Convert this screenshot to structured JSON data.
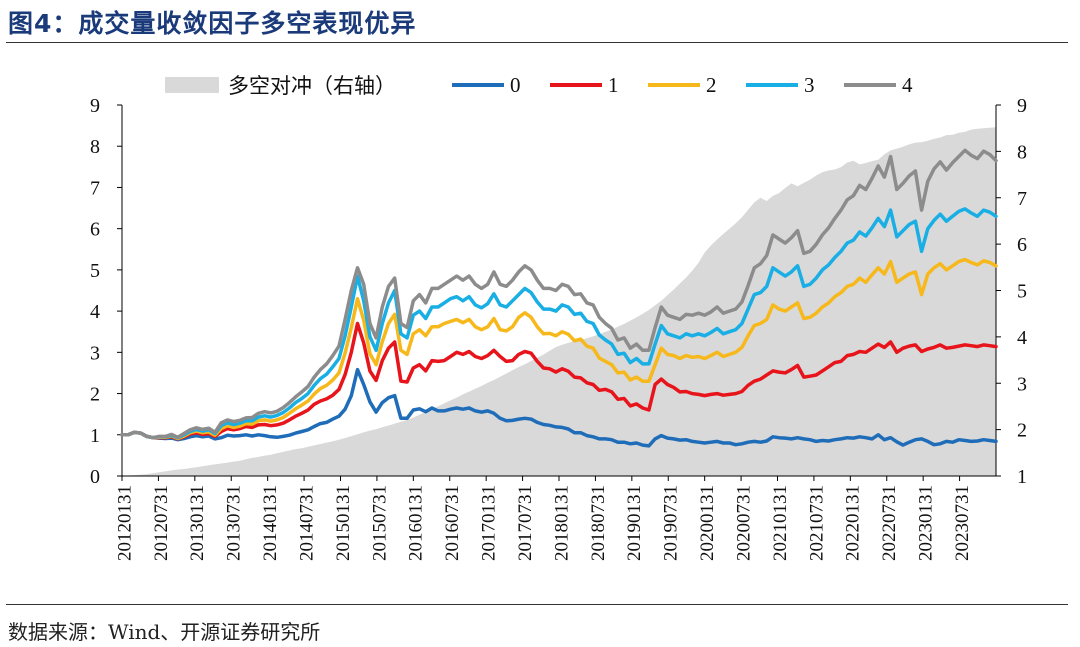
{
  "figure": {
    "title": "图4：成交量收敛因子多空表现优异",
    "source": "数据来源：Wind、开源证券研究所"
  },
  "chart_data": {
    "type": "line",
    "legend": [
      "多空对冲（右轴）",
      "0",
      "1",
      "2",
      "3",
      "4"
    ],
    "legend_position": "top",
    "colors": {
      "hedge": "#d9d9d9",
      "0": "#1f6db8",
      "1": "#e8141b",
      "2": "#f7b81c",
      "3": "#19aee4",
      "4": "#8c8c8c"
    },
    "x_tick_labels": [
      "20120131",
      "20120731",
      "20130131",
      "20130731",
      "20140131",
      "20140731",
      "20150131",
      "20150731",
      "20160131",
      "20160731",
      "20170131",
      "20170731",
      "20180131",
      "20180731",
      "20190131",
      "20190731",
      "20200131",
      "20200731",
      "20210131",
      "20210731",
      "20220131",
      "20220731",
      "20230131",
      "20230731"
    ],
    "ylim_left": [
      0,
      9
    ],
    "ylim_right": [
      1,
      9
    ],
    "y_ticks_left": [
      "0",
      "1",
      "2",
      "3",
      "4",
      "5",
      "6",
      "7",
      "8",
      "9"
    ],
    "y_ticks_right": [
      "1",
      "2",
      "3",
      "4",
      "5",
      "6",
      "7",
      "8",
      "9"
    ],
    "x_months": [
      0,
      1,
      2,
      3,
      4,
      5,
      6,
      7,
      8,
      9,
      10,
      11,
      12,
      13,
      14,
      15,
      16,
      17,
      18,
      19,
      20,
      21,
      22,
      23,
      24,
      25,
      26,
      27,
      28,
      29,
      30,
      31,
      32,
      33,
      34,
      35,
      36,
      37,
      38,
      39,
      40,
      41,
      42,
      43,
      44,
      45,
      46,
      47,
      48,
      49,
      50,
      51,
      52,
      53,
      54,
      55,
      56,
      57,
      58,
      59,
      60,
      61,
      62,
      63,
      64,
      65,
      66,
      67,
      68,
      69,
      70,
      71,
      72,
      73,
      74,
      75,
      76,
      77,
      78,
      79,
      80,
      81,
      82,
      83,
      84,
      85,
      86,
      87,
      88,
      89,
      90,
      91,
      92,
      93,
      94,
      95,
      96,
      97,
      98,
      99,
      100,
      101,
      102,
      103,
      104,
      105,
      106,
      107,
      108,
      109,
      110,
      111,
      112,
      113,
      114,
      115,
      116,
      117,
      118,
      119,
      120,
      121,
      122,
      123,
      124,
      125,
      126,
      127,
      128,
      129,
      130,
      131,
      132,
      133,
      134,
      135,
      136,
      137,
      138,
      139,
      140,
      141
    ],
    "series": [
      {
        "name": "多空对冲（右轴）",
        "axis": "right",
        "key": "hedge",
        "values": [
          1.0,
          1.01,
          1.02,
          1.03,
          1.04,
          1.06,
          1.08,
          1.1,
          1.12,
          1.14,
          1.15,
          1.17,
          1.19,
          1.21,
          1.23,
          1.25,
          1.27,
          1.29,
          1.31,
          1.33,
          1.36,
          1.39,
          1.41,
          1.44,
          1.46,
          1.49,
          1.52,
          1.55,
          1.58,
          1.6,
          1.63,
          1.66,
          1.69,
          1.72,
          1.75,
          1.78,
          1.82,
          1.86,
          1.9,
          1.94,
          1.98,
          2.01,
          2.05,
          2.09,
          2.13,
          2.17,
          2.21,
          2.26,
          2.32,
          2.38,
          2.44,
          2.5,
          2.57,
          2.63,
          2.69,
          2.76,
          2.82,
          2.88,
          2.94,
          3.01,
          3.07,
          3.14,
          3.21,
          3.28,
          3.35,
          3.41,
          3.48,
          3.55,
          3.62,
          3.7,
          3.78,
          3.83,
          3.87,
          3.91,
          3.94,
          3.97,
          4.01,
          4.06,
          4.11,
          4.16,
          4.22,
          4.28,
          4.35,
          4.42,
          4.5,
          4.58,
          4.68,
          4.78,
          4.9,
          5.02,
          5.15,
          5.28,
          5.43,
          5.6,
          5.82,
          5.97,
          6.1,
          6.22,
          6.33,
          6.45,
          6.58,
          6.74,
          6.9,
          7.0,
          6.93,
          7.04,
          7.1,
          7.21,
          7.31,
          7.25,
          7.32,
          7.39,
          7.48,
          7.55,
          7.59,
          7.61,
          7.66,
          7.76,
          7.8,
          7.72,
          7.75,
          7.79,
          7.82,
          7.94,
          8.02,
          8.06,
          8.1,
          8.15,
          8.19,
          8.2,
          8.23,
          8.27,
          8.3,
          8.35,
          8.36,
          8.4,
          8.42,
          8.47,
          8.49,
          8.5,
          8.51,
          8.52
        ]
      },
      {
        "name": "0",
        "axis": "left",
        "key": "0",
        "values": [
          1.0,
          1.0,
          1.06,
          1.04,
          0.96,
          0.93,
          0.92,
          0.91,
          0.92,
          0.88,
          0.91,
          0.95,
          0.98,
          0.95,
          0.97,
          0.9,
          0.93,
          0.99,
          0.97,
          0.98,
          1.0,
          0.97,
          1.0,
          0.98,
          0.95,
          0.94,
          0.96,
          0.99,
          1.04,
          1.08,
          1.12,
          1.2,
          1.27,
          1.3,
          1.38,
          1.45,
          1.62,
          1.95,
          2.58,
          2.22,
          1.8,
          1.55,
          1.78,
          1.9,
          1.95,
          1.4,
          1.4,
          1.6,
          1.63,
          1.56,
          1.65,
          1.58,
          1.58,
          1.62,
          1.65,
          1.62,
          1.65,
          1.58,
          1.55,
          1.58,
          1.52,
          1.4,
          1.34,
          1.35,
          1.38,
          1.4,
          1.38,
          1.3,
          1.25,
          1.23,
          1.19,
          1.18,
          1.14,
          1.05,
          1.05,
          0.98,
          0.95,
          0.9,
          0.9,
          0.88,
          0.82,
          0.82,
          0.78,
          0.8,
          0.75,
          0.73,
          0.9,
          0.98,
          0.92,
          0.9,
          0.87,
          0.88,
          0.84,
          0.82,
          0.8,
          0.82,
          0.84,
          0.8,
          0.8,
          0.76,
          0.78,
          0.82,
          0.84,
          0.82,
          0.85,
          0.95,
          0.93,
          0.92,
          0.9,
          0.93,
          0.9,
          0.88,
          0.84,
          0.86,
          0.85,
          0.88,
          0.9,
          0.93,
          0.92,
          0.95,
          0.93,
          0.9,
          1.0,
          0.88,
          0.93,
          0.83,
          0.75,
          0.82,
          0.88,
          0.9,
          0.84,
          0.76,
          0.78,
          0.84,
          0.82,
          0.88,
          0.86,
          0.84,
          0.85,
          0.88,
          0.86,
          0.84
        ]
      },
      {
        "name": "1",
        "axis": "left",
        "key": "1",
        "values": [
          1.0,
          1.0,
          1.06,
          1.04,
          0.96,
          0.93,
          0.93,
          0.93,
          0.95,
          0.9,
          0.95,
          1.02,
          1.05,
          1.01,
          1.03,
          0.96,
          1.08,
          1.15,
          1.12,
          1.15,
          1.2,
          1.18,
          1.24,
          1.25,
          1.22,
          1.24,
          1.28,
          1.36,
          1.45,
          1.52,
          1.6,
          1.74,
          1.82,
          1.87,
          1.96,
          2.1,
          2.46,
          3.0,
          3.7,
          3.23,
          2.55,
          2.32,
          2.8,
          3.1,
          3.25,
          2.3,
          2.28,
          2.62,
          2.7,
          2.55,
          2.8,
          2.78,
          2.8,
          2.9,
          3.0,
          2.95,
          3.02,
          2.9,
          2.85,
          2.92,
          3.05,
          2.9,
          2.78,
          2.8,
          2.95,
          3.02,
          2.98,
          2.78,
          2.62,
          2.6,
          2.52,
          2.6,
          2.54,
          2.4,
          2.38,
          2.26,
          2.22,
          2.08,
          2.1,
          2.04,
          1.86,
          1.88,
          1.7,
          1.75,
          1.65,
          1.6,
          2.22,
          2.35,
          2.22,
          2.15,
          2.04,
          2.05,
          2.0,
          1.98,
          1.95,
          1.98,
          2.0,
          1.96,
          1.98,
          2.0,
          2.05,
          2.2,
          2.3,
          2.35,
          2.45,
          2.55,
          2.52,
          2.5,
          2.58,
          2.68,
          2.4,
          2.42,
          2.45,
          2.55,
          2.65,
          2.75,
          2.78,
          2.92,
          2.95,
          3.02,
          3.0,
          3.1,
          3.2,
          3.12,
          3.25,
          3.0,
          3.1,
          3.15,
          3.18,
          3.02,
          3.08,
          3.12,
          3.18,
          3.1,
          3.12,
          3.15,
          3.18,
          3.16,
          3.14,
          3.18,
          3.16,
          3.14
        ]
      },
      {
        "name": "2",
        "axis": "left",
        "key": "2",
        "values": [
          1.0,
          1.0,
          1.06,
          1.04,
          0.96,
          0.93,
          0.94,
          0.94,
          0.97,
          0.91,
          0.97,
          1.05,
          1.09,
          1.05,
          1.07,
          0.99,
          1.15,
          1.22,
          1.18,
          1.21,
          1.27,
          1.26,
          1.34,
          1.36,
          1.33,
          1.36,
          1.42,
          1.52,
          1.63,
          1.72,
          1.82,
          1.99,
          2.12,
          2.2,
          2.33,
          2.5,
          2.98,
          3.6,
          4.3,
          3.78,
          2.97,
          2.7,
          3.26,
          3.7,
          3.92,
          3.05,
          2.95,
          3.45,
          3.55,
          3.4,
          3.62,
          3.62,
          3.7,
          3.75,
          3.8,
          3.72,
          3.8,
          3.62,
          3.55,
          3.62,
          3.82,
          3.55,
          3.52,
          3.62,
          3.85,
          3.96,
          3.85,
          3.62,
          3.45,
          3.46,
          3.4,
          3.5,
          3.44,
          3.28,
          3.32,
          3.15,
          3.1,
          2.86,
          2.78,
          2.7,
          2.5,
          2.52,
          2.33,
          2.4,
          2.3,
          2.3,
          2.7,
          3.1,
          2.95,
          2.92,
          2.85,
          2.92,
          2.88,
          2.9,
          2.85,
          2.92,
          3.0,
          2.9,
          2.95,
          3.0,
          3.12,
          3.4,
          3.65,
          3.7,
          3.8,
          4.15,
          4.05,
          4.0,
          4.1,
          4.2,
          3.82,
          3.85,
          3.95,
          4.1,
          4.2,
          4.35,
          4.45,
          4.6,
          4.65,
          4.8,
          4.7,
          4.88,
          5.05,
          4.9,
          5.2,
          4.7,
          4.8,
          4.9,
          4.95,
          4.4,
          4.9,
          5.05,
          5.15,
          5.0,
          5.1,
          5.2,
          5.25,
          5.18,
          5.12,
          5.22,
          5.18,
          5.1
        ]
      },
      {
        "name": "3",
        "axis": "left",
        "key": "3",
        "values": [
          1.0,
          1.0,
          1.06,
          1.04,
          0.96,
          0.93,
          0.95,
          0.95,
          0.99,
          0.93,
          1.0,
          1.08,
          1.13,
          1.09,
          1.12,
          1.03,
          1.22,
          1.29,
          1.25,
          1.28,
          1.34,
          1.34,
          1.43,
          1.46,
          1.43,
          1.47,
          1.54,
          1.65,
          1.78,
          1.88,
          2.0,
          2.2,
          2.36,
          2.47,
          2.65,
          2.85,
          3.4,
          4.1,
          4.85,
          4.25,
          3.38,
          3.05,
          3.7,
          4.2,
          4.5,
          3.45,
          3.35,
          3.9,
          4.0,
          3.82,
          4.1,
          4.1,
          4.2,
          4.3,
          4.35,
          4.25,
          4.35,
          4.15,
          4.08,
          4.18,
          4.42,
          4.15,
          4.1,
          4.25,
          4.4,
          4.55,
          4.45,
          4.22,
          4.05,
          4.05,
          4.0,
          4.15,
          4.1,
          3.92,
          3.95,
          3.75,
          3.7,
          3.42,
          3.3,
          3.2,
          2.95,
          2.98,
          2.75,
          2.85,
          2.72,
          2.72,
          3.2,
          3.65,
          3.45,
          3.4,
          3.35,
          3.45,
          3.4,
          3.45,
          3.4,
          3.48,
          3.58,
          3.45,
          3.5,
          3.55,
          3.7,
          4.05,
          4.4,
          4.45,
          4.6,
          5.05,
          4.95,
          4.85,
          4.95,
          5.1,
          4.6,
          4.65,
          4.8,
          5.0,
          5.12,
          5.3,
          5.45,
          5.65,
          5.72,
          5.92,
          5.82,
          6.02,
          6.25,
          6.05,
          6.45,
          5.8,
          5.95,
          6.1,
          6.18,
          5.45,
          6.0,
          6.2,
          6.35,
          6.18,
          6.3,
          6.42,
          6.48,
          6.38,
          6.3,
          6.45,
          6.4,
          6.3
        ]
      },
      {
        "name": "4",
        "axis": "left",
        "key": "4",
        "values": [
          1.0,
          1.0,
          1.06,
          1.04,
          0.96,
          0.93,
          0.96,
          0.96,
          1.01,
          0.94,
          1.03,
          1.12,
          1.17,
          1.13,
          1.16,
          1.06,
          1.29,
          1.36,
          1.32,
          1.35,
          1.41,
          1.42,
          1.52,
          1.56,
          1.53,
          1.57,
          1.66,
          1.78,
          1.92,
          2.04,
          2.17,
          2.4,
          2.58,
          2.72,
          2.92,
          3.15,
          3.8,
          4.5,
          5.05,
          4.65,
          3.7,
          3.35,
          4.1,
          4.6,
          4.8,
          3.7,
          3.6,
          4.25,
          4.4,
          4.2,
          4.55,
          4.55,
          4.65,
          4.75,
          4.85,
          4.75,
          4.85,
          4.65,
          4.55,
          4.65,
          4.95,
          4.65,
          4.6,
          4.75,
          4.95,
          5.1,
          5.0,
          4.75,
          4.55,
          4.55,
          4.5,
          4.65,
          4.6,
          4.4,
          4.42,
          4.2,
          4.15,
          3.85,
          3.7,
          3.58,
          3.3,
          3.35,
          3.1,
          3.2,
          3.05,
          3.05,
          3.6,
          4.1,
          3.9,
          3.85,
          3.8,
          3.92,
          3.9,
          3.95,
          3.9,
          3.98,
          4.1,
          3.95,
          4.0,
          4.05,
          4.22,
          4.62,
          5.05,
          5.15,
          5.35,
          5.85,
          5.75,
          5.65,
          5.78,
          5.95,
          5.4,
          5.45,
          5.62,
          5.85,
          6.02,
          6.25,
          6.45,
          6.7,
          6.8,
          7.05,
          6.95,
          7.22,
          7.52,
          7.25,
          7.75,
          6.95,
          7.1,
          7.28,
          7.4,
          6.45,
          7.15,
          7.45,
          7.62,
          7.42,
          7.6,
          7.75,
          7.9,
          7.78,
          7.7,
          7.88,
          7.8,
          7.65
        ]
      }
    ]
  }
}
